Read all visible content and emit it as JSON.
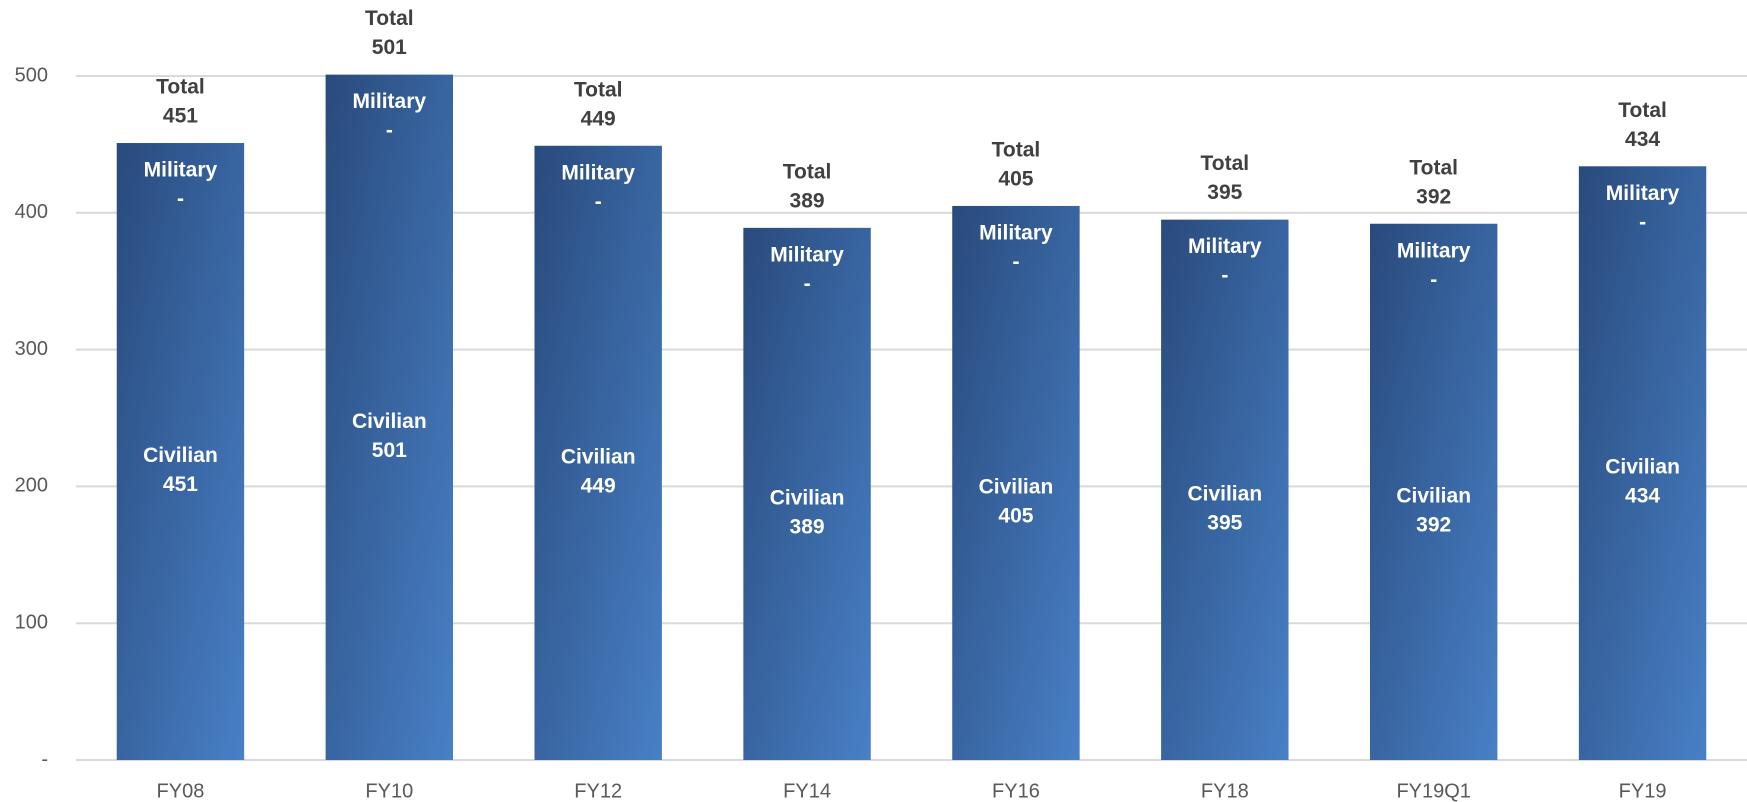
{
  "chart_data": {
    "type": "stacked_bar",
    "categories": [
      "FY08",
      "FY10",
      "FY12",
      "FY14",
      "FY16",
      "FY18",
      "FY19Q1",
      "FY19"
    ],
    "series": [
      {
        "name": "Civilian",
        "color": "#3a6aa8",
        "values": [
          451,
          501,
          449,
          389,
          405,
          395,
          392,
          434
        ]
      },
      {
        "name": "Military",
        "color": "#2d5288",
        "values": [
          0,
          0,
          0,
          0,
          0,
          0,
          0,
          0
        ],
        "value_labels": [
          "-",
          "-",
          "-",
          "-",
          "-",
          "-",
          "-",
          "-"
        ]
      }
    ],
    "total_name": "Total",
    "totals": [
      451,
      501,
      449,
      389,
      405,
      395,
      392,
      434
    ],
    "ylim": [
      0,
      500
    ],
    "yticks": [
      {
        "value": 0,
        "label": "-"
      },
      100,
      200,
      300,
      400,
      500
    ],
    "grid": true
  }
}
